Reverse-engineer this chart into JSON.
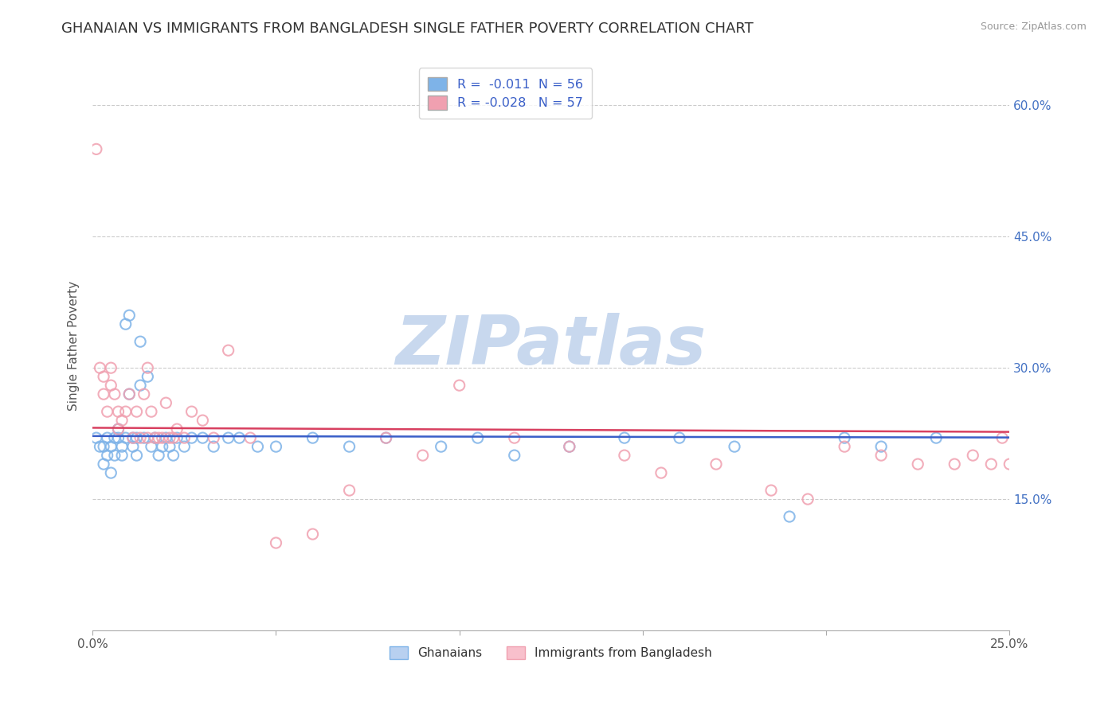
{
  "title": "GHANAIAN VS IMMIGRANTS FROM BANGLADESH SINGLE FATHER POVERTY CORRELATION CHART",
  "source": "Source: ZipAtlas.com",
  "ylabel": "Single Father Poverty",
  "xlim": [
    0.0,
    0.25
  ],
  "ylim": [
    0.0,
    0.65
  ],
  "yticks": [
    0.15,
    0.3,
    0.45,
    0.6
  ],
  "ytick_labels": [
    "15.0%",
    "30.0%",
    "45.0%",
    "60.0%"
  ],
  "xticks": [
    0.0,
    0.05,
    0.1,
    0.15,
    0.2,
    0.25
  ],
  "xtick_labels_show": [
    "0.0%",
    "",
    "",
    "",
    "",
    "25.0%"
  ],
  "grid_color": "#cccccc",
  "background_color": "#ffffff",
  "watermark": "ZIPatlas",
  "watermark_color": "#c8d8ee",
  "series1_name": "Ghanaians",
  "series1_color": "#7eb3e8",
  "series1_R": -0.011,
  "series1_N": 56,
  "series2_name": "Immigrants from Bangladesh",
  "series2_color": "#f0a0b0",
  "series2_R": -0.028,
  "series2_N": 57,
  "legend_R1": "R =  -0.011  N = 56",
  "legend_R2": "R = -0.028   N = 57",
  "title_fontsize": 13,
  "axis_label_fontsize": 11,
  "tick_fontsize": 11,
  "marker_size": 90,
  "line_color1": "#3a5fc8",
  "line_color2": "#d84060",
  "line_width": 1.8,
  "ghanaians_x": [
    0.001,
    0.002,
    0.003,
    0.003,
    0.004,
    0.004,
    0.005,
    0.005,
    0.006,
    0.006,
    0.007,
    0.007,
    0.008,
    0.008,
    0.009,
    0.009,
    0.01,
    0.01,
    0.011,
    0.011,
    0.012,
    0.012,
    0.013,
    0.013,
    0.014,
    0.015,
    0.016,
    0.017,
    0.018,
    0.019,
    0.02,
    0.021,
    0.022,
    0.023,
    0.025,
    0.027,
    0.03,
    0.033,
    0.037,
    0.04,
    0.045,
    0.05,
    0.06,
    0.07,
    0.08,
    0.095,
    0.105,
    0.115,
    0.13,
    0.145,
    0.16,
    0.175,
    0.19,
    0.205,
    0.215,
    0.23
  ],
  "ghanaians_y": [
    0.22,
    0.21,
    0.19,
    0.21,
    0.2,
    0.22,
    0.18,
    0.21,
    0.22,
    0.2,
    0.23,
    0.22,
    0.21,
    0.2,
    0.22,
    0.35,
    0.36,
    0.27,
    0.21,
    0.22,
    0.2,
    0.22,
    0.33,
    0.28,
    0.22,
    0.29,
    0.21,
    0.22,
    0.2,
    0.21,
    0.22,
    0.21,
    0.2,
    0.22,
    0.21,
    0.22,
    0.22,
    0.21,
    0.22,
    0.22,
    0.21,
    0.21,
    0.22,
    0.21,
    0.22,
    0.21,
    0.22,
    0.2,
    0.21,
    0.22,
    0.22,
    0.21,
    0.13,
    0.22,
    0.21,
    0.22
  ],
  "bangladesh_x": [
    0.001,
    0.002,
    0.003,
    0.003,
    0.004,
    0.005,
    0.005,
    0.006,
    0.007,
    0.007,
    0.008,
    0.009,
    0.01,
    0.011,
    0.012,
    0.013,
    0.014,
    0.015,
    0.015,
    0.016,
    0.017,
    0.018,
    0.019,
    0.02,
    0.021,
    0.022,
    0.023,
    0.025,
    0.027,
    0.03,
    0.033,
    0.037,
    0.043,
    0.05,
    0.06,
    0.07,
    0.08,
    0.09,
    0.1,
    0.115,
    0.13,
    0.145,
    0.155,
    0.17,
    0.185,
    0.195,
    0.205,
    0.215,
    0.225,
    0.235,
    0.24,
    0.245,
    0.248,
    0.25,
    0.252,
    0.253,
    0.255
  ],
  "bangladesh_y": [
    0.55,
    0.3,
    0.27,
    0.29,
    0.25,
    0.28,
    0.3,
    0.27,
    0.25,
    0.23,
    0.24,
    0.25,
    0.27,
    0.22,
    0.25,
    0.22,
    0.27,
    0.3,
    0.22,
    0.25,
    0.22,
    0.22,
    0.22,
    0.26,
    0.22,
    0.22,
    0.23,
    0.22,
    0.25,
    0.24,
    0.22,
    0.32,
    0.22,
    0.1,
    0.11,
    0.16,
    0.22,
    0.2,
    0.28,
    0.22,
    0.21,
    0.2,
    0.18,
    0.19,
    0.16,
    0.15,
    0.21,
    0.2,
    0.19,
    0.19,
    0.2,
    0.19,
    0.22,
    0.19,
    0.21,
    0.2,
    0.19
  ]
}
